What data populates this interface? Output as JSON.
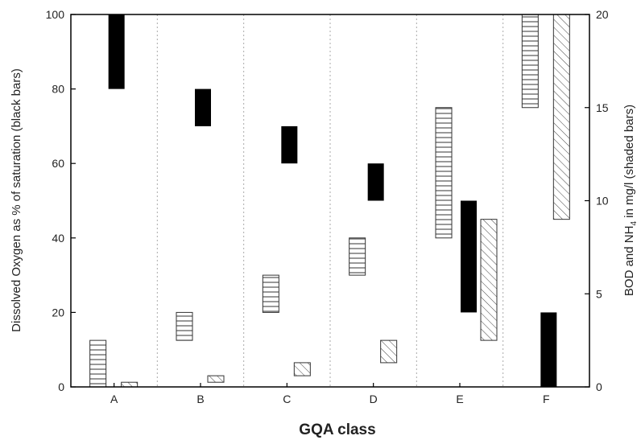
{
  "chart_data": {
    "type": "bar",
    "title": "",
    "xlabel": "GQA class",
    "ylabel_left": "Dissolved Oxygen as % of saturation (black bars)",
    "ylabel_right_prefix": "BOD and NH",
    "ylabel_right_subscript": "4",
    "ylabel_right_suffix": " in mg/l (shaded bars)",
    "categories": [
      "A",
      "B",
      "C",
      "D",
      "E",
      "F"
    ],
    "ylim_left": [
      0,
      100
    ],
    "ylim_right": [
      0,
      20
    ],
    "yticks_left": [
      "0",
      "20",
      "40",
      "60",
      "80",
      "100"
    ],
    "yticks_right": [
      "0",
      "5",
      "10",
      "15",
      "20"
    ],
    "grid": "vertical dotted separators between classes",
    "legend": "none",
    "series": [
      {
        "pattern": "solid-black",
        "axis": "left",
        "ranges": [
          [
            80,
            100
          ],
          [
            70,
            80
          ],
          [
            60,
            70
          ],
          [
            50,
            60
          ],
          [
            20,
            50
          ],
          [
            0,
            20
          ]
        ]
      },
      {
        "pattern": "horizontal-hatch",
        "axis": "right",
        "ranges": [
          [
            0,
            2.5
          ],
          [
            2.5,
            4
          ],
          [
            4,
            6
          ],
          [
            6,
            8
          ],
          [
            8,
            15
          ],
          [
            15,
            20
          ]
        ]
      },
      {
        "pattern": "diagonal-hatch",
        "axis": "right",
        "ranges": [
          [
            0,
            0.25
          ],
          [
            0.25,
            0.6
          ],
          [
            0.6,
            1.3
          ],
          [
            1.3,
            2.5
          ],
          [
            2.5,
            9
          ],
          [
            9,
            20
          ]
        ]
      }
    ],
    "colors": {
      "black_bar": "#000000",
      "hatch": "#444444",
      "grid": "#aaaaaa"
    }
  }
}
